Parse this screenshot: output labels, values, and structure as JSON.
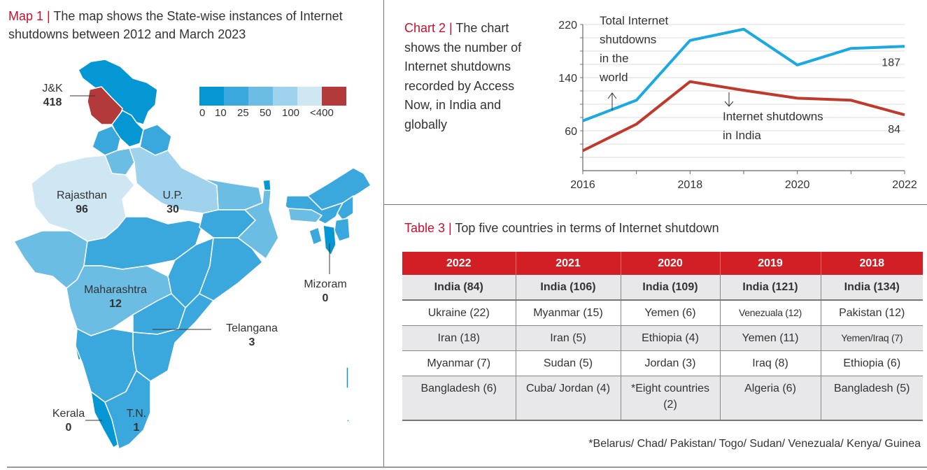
{
  "map": {
    "title_tag": "Map 1 |",
    "title_text": " The map shows the State-wise instances of Internet shutdowns between 2012 and March 2023",
    "legend": {
      "colors": [
        "#0597d3",
        "#3aa8dc",
        "#6bbde4",
        "#9fd2ec",
        "#cfe6f3",
        "#b33a3a"
      ],
      "ticks": [
        "0",
        "10",
        "25",
        "50",
        "100",
        "<400"
      ]
    },
    "labels": [
      {
        "state": "J&K",
        "value": "418"
      },
      {
        "state": "Rajasthan",
        "value": "96"
      },
      {
        "state": "U.P.",
        "value": "30"
      },
      {
        "state": "Maharashtra",
        "value": "12"
      },
      {
        "state": "Telangana",
        "value": "3"
      },
      {
        "state": "Mizoram",
        "value": "0"
      },
      {
        "state": "Kerala",
        "value": "0"
      },
      {
        "state": "T.N.",
        "value": "1"
      }
    ]
  },
  "chart": {
    "title_tag": "Chart 2 |",
    "title_text": " The chart shows the number of Internet shutdowns recorded by Access Now, in India and globally"
  },
  "chart_data": {
    "type": "line",
    "title": "Chart 2 | The chart shows the number of Internet shutdowns recorded by Access Now, in India and globally",
    "x": [
      2016,
      2017,
      2018,
      2019,
      2020,
      2021,
      2022
    ],
    "x_tick_labels": [
      "2016",
      "2018",
      "2020",
      "2022"
    ],
    "y_tick_labels": [
      "60",
      "140",
      "220"
    ],
    "ylim": [
      0,
      220
    ],
    "grid": true,
    "series": [
      {
        "name": "Total Internet shutdowns in the world",
        "color": "#1ba9e1",
        "values": [
          75,
          106,
          196,
          213,
          159,
          184,
          187
        ],
        "end_label": "187",
        "annotation": [
          "Total Internet",
          "shutdowns",
          "in the",
          "world"
        ]
      },
      {
        "name": "Internet shutdowns in India",
        "color": "#c0392b",
        "values": [
          30,
          70,
          134,
          121,
          109,
          106,
          84
        ],
        "end_label": "84",
        "annotation": [
          "Internet shutdowns",
          "in India"
        ]
      }
    ]
  },
  "table": {
    "title_tag": "Table 3 |",
    "title_text": " Top five countries in terms of Internet shutdown",
    "headers": [
      "2022",
      "2021",
      "2020",
      "2019",
      "2018"
    ],
    "rows": [
      [
        "India (84)",
        "India (106)",
        "India (109)",
        "India (121)",
        "India (134)"
      ],
      [
        "Ukraine (22)",
        "Myanmar (15)",
        "Yemen (6)",
        "Venezuala (12)",
        "Pakistan (12)"
      ],
      [
        "Iran (18)",
        "Iran (5)",
        "Ethiopia (4)",
        "Yemen (11)",
        "Yemen/Iraq (7)"
      ],
      [
        "Myanmar (7)",
        "Sudan (5)",
        "Jordan (3)",
        "Iraq (8)",
        "Ethiopia (6)"
      ],
      [
        "Bangladesh (6)",
        "Cuba/ Jordan (4)",
        "*Eight countries (2)",
        "Algeria (6)",
        "Bangladesh (5)"
      ]
    ],
    "footnote": "*Belarus/ Chad/ Pakistan/ Togo/ Sudan/ Venezuala/ Kenya/ Guinea"
  }
}
